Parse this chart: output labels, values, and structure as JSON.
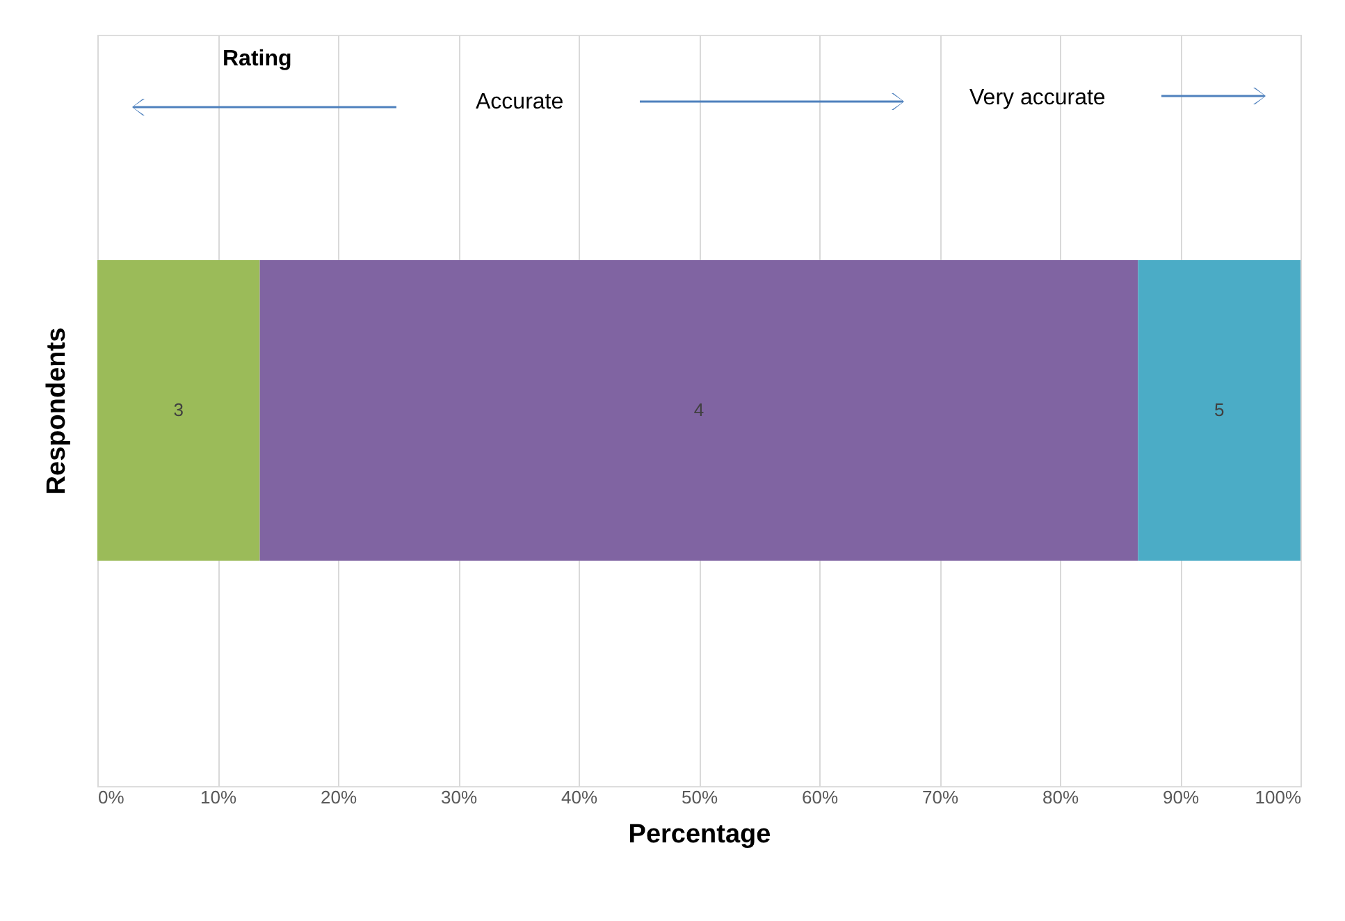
{
  "chart_data": {
    "type": "bar",
    "orientation": "horizontal",
    "stacked": true,
    "relative": false,
    "categories": [
      null
    ],
    "series": [
      {
        "name": "3",
        "color": "#9bbb59",
        "values": [
          13.5
        ]
      },
      {
        "name": "4",
        "color": "#8064a2",
        "values": [
          73
        ]
      },
      {
        "name": "5",
        "color": "#4bacc6",
        "values": [
          13.5
        ]
      }
    ],
    "xlabel": "Percentage",
    "ylabel": "Respondents",
    "xlim": [
      0,
      100
    ],
    "xticks": [
      {
        "value": 0,
        "label": "0%"
      },
      {
        "value": 10,
        "label": "10%"
      },
      {
        "value": 20,
        "label": "20%"
      },
      {
        "value": 30,
        "label": "30%"
      },
      {
        "value": 40,
        "label": "40%"
      },
      {
        "value": 50,
        "label": "50%"
      },
      {
        "value": 60,
        "label": "60%"
      },
      {
        "value": 70,
        "label": "70%"
      },
      {
        "value": 80,
        "label": "80%"
      },
      {
        "value": 90,
        "label": "90%"
      },
      {
        "value": 100,
        "label": "100%"
      }
    ],
    "annotations": [
      "Rating",
      "Accurate",
      "Very accurate"
    ],
    "grid": "x",
    "legend": false
  }
}
